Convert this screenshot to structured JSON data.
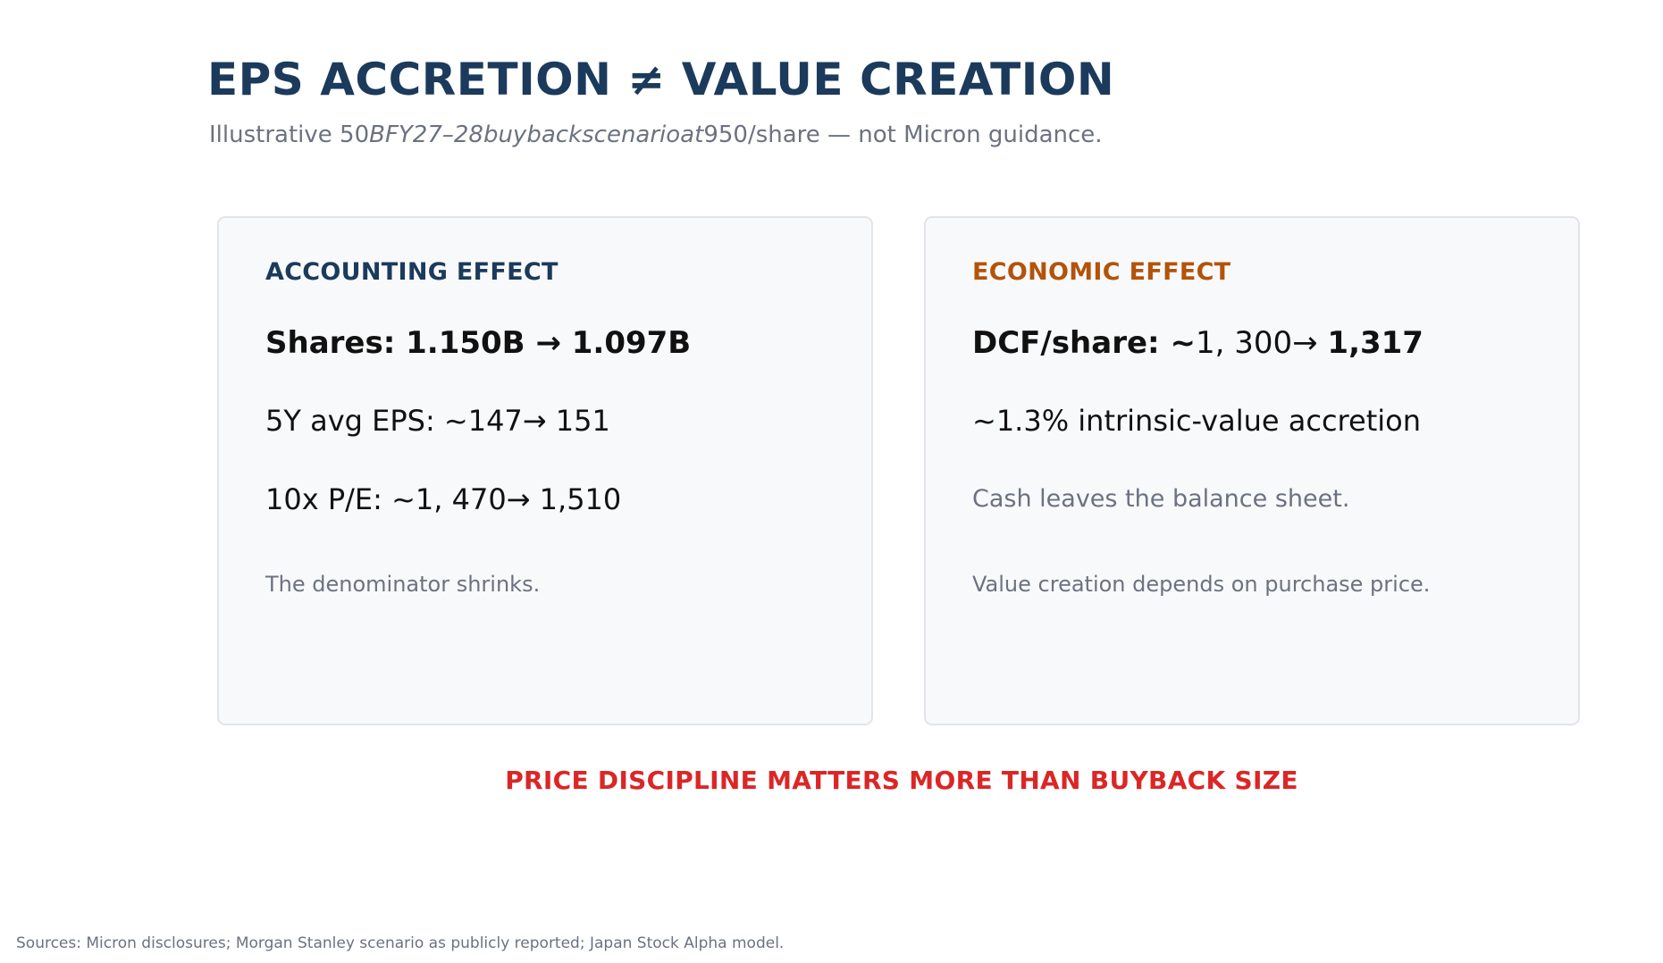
{
  "header": {
    "title": "EPS ACCRETION ≠ VALUE CREATION",
    "subtitle_pre": "Illustrative 50",
    "subtitle_math": "BFY27–28buybackscenarioat",
    "subtitle_post": "950/share — not Micron guidance."
  },
  "accounting": {
    "heading": "ACCOUNTING EFFECT",
    "shares_label": "Shares: ",
    "shares_value": "1.150B → 1.097B",
    "eps_line": "5Y avg EPS: ~147→ 151",
    "pe_line": "10x P/E: ~1, 470→ 1,510",
    "note": "The denominator shrinks."
  },
  "economic": {
    "heading": "ECONOMIC EFFECT",
    "dcf_label": "DCF/share: ~",
    "dcf_math": "1, 300→ ",
    "dcf_value": "1,317",
    "accretion_line": "~1.3% intrinsic-value accretion",
    "cash_line": "Cash leaves the balance sheet.",
    "note": "Value creation depends on purchase price."
  },
  "callout": "PRICE DISCIPLINE MATTERS MORE THAN BUYBACK SIZE",
  "footer": {
    "sources": "Sources: Micron disclosures; Morgan Stanley scenario as publicly reported; Japan Stock Alpha model."
  },
  "colors": {
    "title": "#1b3a5c",
    "accounting_heading": "#1b3a5c",
    "economic_heading": "#b35309",
    "callout": "#dc2626",
    "muted_text": "#6b7280",
    "card_background": "#f8f9fb",
    "card_border": "#e2e4ea"
  }
}
